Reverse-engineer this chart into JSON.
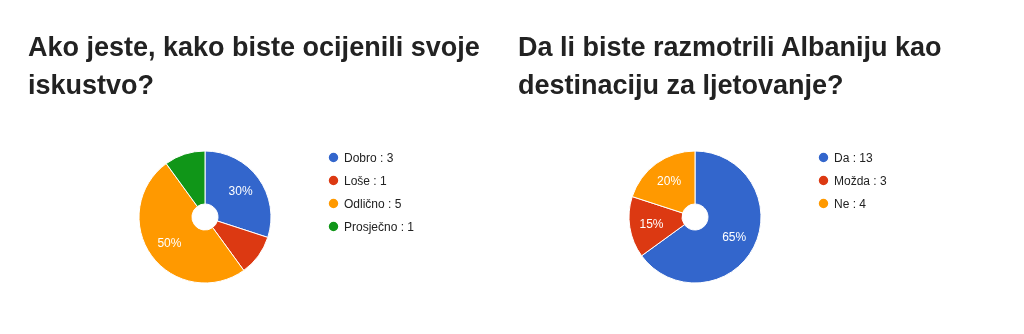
{
  "chart_data": [
    {
      "type": "donut",
      "title": "Ako jeste, kako biste ocijenili svoje iskustvo?",
      "categories": [
        "Dobro : 3",
        "Loše : 1",
        "Odlično : 5",
        "Prosječno : 1"
      ],
      "values": [
        30,
        10,
        50,
        10
      ],
      "colors": [
        "#3366cc",
        "#dc3912",
        "#ff9900",
        "#109618"
      ],
      "value_labels": [
        "30%",
        null,
        "50%",
        null
      ],
      "legend": "right"
    },
    {
      "type": "donut",
      "title": "Da li biste razmotrili Albaniju kao destinaciju za ljetovanje?",
      "categories": [
        "Da : 13",
        "Možda : 3",
        "Ne : 4"
      ],
      "values": [
        65,
        15,
        20
      ],
      "colors": [
        "#3366cc",
        "#dc3912",
        "#ff9900"
      ],
      "value_labels": [
        "65%",
        "15%",
        "20%"
      ],
      "legend": "right"
    }
  ]
}
